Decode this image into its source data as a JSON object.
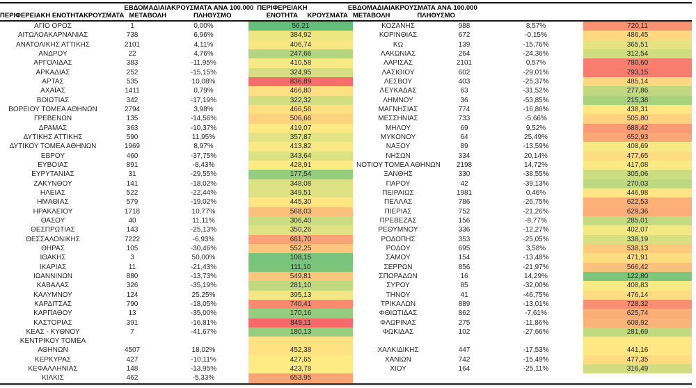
{
  "color_scale": {
    "min": 56.21,
    "mid": 427.65,
    "max": 849.11,
    "min_color": "#63BE7B",
    "mid_color": "#FFEB84",
    "max_color": "#F8696B"
  },
  "border_colors": {
    "heavy": "#141414",
    "bottom": "#4a4a4a"
  },
  "tables": [
    {
      "headers": {
        "region": "ΠΕΡΙΦΕΡΕΙΑΚΗ ΕΝΟΤΗΤΑ",
        "cases": "ΚΡΟΥΣΜΑΤΑ",
        "change": "ΕΒΔΟΜΑΔΙΑΙΑ\nΜΕΤΑΒΟΛΗ",
        "per100k": "ΚΡΟΥΣΜΑΤΑ ΑΝΑ 100.000\nΠΛΗΘΥΣΜΟ"
      },
      "rows": [
        {
          "n": "ΑΓΙΟ ΟΡΟΣ",
          "c": "1",
          "w": "0,00%",
          "p": "56,21"
        },
        {
          "n": "ΑΙΤΩΛΟΑΚΑΡΝΑΝΙΑΣ",
          "c": "738",
          "w": "6,96%",
          "p": "384,92"
        },
        {
          "n": "ΑΝΑΤΟΛΙΚΗΣ ΑΤΤΙΚΗΣ",
          "c": "2101",
          "w": "4,11%",
          "p": "406,74"
        },
        {
          "n": "ΑΝΔΡΟΥ",
          "c": "22",
          "w": "4,76%",
          "p": "247,66"
        },
        {
          "n": "ΑΡΓΟΛΙΔΑΣ",
          "c": "383",
          "w": "-11,95%",
          "p": "410,58"
        },
        {
          "n": "ΑΡΚΑΔΙΑΣ",
          "c": "252",
          "w": "-15,15%",
          "p": "324,95"
        },
        {
          "n": "ΑΡΤΑΣ",
          "c": "535",
          "w": "10,08%",
          "p": "836,89"
        },
        {
          "n": "ΑΧΑΪΑΣ",
          "c": "1411",
          "w": "0,79%",
          "p": "466,80"
        },
        {
          "n": "ΒΟΙΩΤΙΑΣ",
          "c": "342",
          "w": "-17,19%",
          "p": "322,32"
        },
        {
          "n": "ΒΟΡΕΙΟΥ ΤΟΜΕΑ ΑΘΗΝΩΝ",
          "c": "2794",
          "w": "3,98%",
          "p": "466,56"
        },
        {
          "n": "ΓΡΕΒΕΝΩΝ",
          "c": "135",
          "w": "-14,56%",
          "p": "506,66"
        },
        {
          "n": "ΔΡΑΜΑΣ",
          "c": "363",
          "w": "-10,37%",
          "p": "419,07"
        },
        {
          "n": "ΔΥΤΙΚΗΣ ΑΤΤΙΚΗΣ",
          "c": "590",
          "w": "11,95%",
          "p": "357,87"
        },
        {
          "n": "ΔΥΤΙΚΟΥ ΤΟΜΕΑ ΑΘΗΝΩΝ",
          "c": "1969",
          "w": "8,97%",
          "p": "413,82"
        },
        {
          "n": "ΕΒΡΟΥ",
          "c": "460",
          "w": "-37,75%",
          "p": "343,64"
        },
        {
          "n": "ΕΥΒΟΙΑΣ",
          "c": "891",
          "w": "-8,43%",
          "p": "428,91"
        },
        {
          "n": "ΕΥΡΥΤΑΝΙΑΣ",
          "c": "31",
          "w": "-29,55%",
          "p": "177,54"
        },
        {
          "n": "ΖΑΚΥΝΘΟΥ",
          "c": "141",
          "w": "-18,02%",
          "p": "348,08"
        },
        {
          "n": "ΗΛΕΙΑΣ",
          "c": "522",
          "w": "-22,44%",
          "p": "349,51"
        },
        {
          "n": "ΗΜΑΘΙΑΣ",
          "c": "579",
          "w": "-19,02%",
          "p": "445,30"
        },
        {
          "n": "ΗΡΑΚΛΕΙΟΥ",
          "c": "1718",
          "w": "10,77%",
          "p": "568,03"
        },
        {
          "n": "ΘΑΣΟΥ",
          "c": "40",
          "w": "11,11%",
          "p": "306,40"
        },
        {
          "n": "ΘΕΣΠΡΩΤΙΑΣ",
          "c": "143",
          "w": "-25,13%",
          "p": "350,26"
        },
        {
          "n": "ΘΕΣΣΑΛΟΝΙΚΗΣ",
          "c": "7222",
          "w": "-6,93%",
          "p": "661,70"
        },
        {
          "n": "ΘΗΡΑΣ",
          "c": "105",
          "w": "-30,46%",
          "p": "552,25"
        },
        {
          "n": "ΙΘΑΚΗΣ",
          "c": "3",
          "w": "50,00%",
          "p": "108,15"
        },
        {
          "n": "ΙΚΑΡΙΑΣ",
          "c": "11",
          "w": "-21,43%",
          "p": "111,10"
        },
        {
          "n": "ΙΩΑΝΝΙΝΩΝ",
          "c": "880",
          "w": "-13,73%",
          "p": "549,81"
        },
        {
          "n": "ΚΑΒΑΛΑΣ",
          "c": "326",
          "w": "-35,19%",
          "p": "281,10"
        },
        {
          "n": "ΚΑΛΥΜΝΟΥ",
          "c": "124",
          "w": "25,25%",
          "p": "395,13"
        },
        {
          "n": "ΚΑΡΔΙΤΣΑΣ",
          "c": "790",
          "w": "-18,05%",
          "p": "740,41"
        },
        {
          "n": "ΚΑΡΠΑΘΟΥ",
          "c": "13",
          "w": "-35,00%",
          "p": "170,16"
        },
        {
          "n": "ΚΑΣΤΟΡΙΑΣ",
          "c": "391",
          "w": "-16,81%",
          "p": "849,11"
        },
        {
          "n": "ΚΕΑΣ - ΚΥΘΝΟΥ",
          "c": "7",
          "w": "-41,67%",
          "p": "180,13"
        },
        {
          "n1": "ΚΕΝΤΡΙΚΟΥ ΤΟΜΕΑ",
          "n2": "ΑΘΗΝΩΝ",
          "c": "4507",
          "w": "18,02%",
          "p": "452,38"
        },
        {
          "n": "ΚΕΡΚΥΡΑΣ",
          "c": "427",
          "w": "-10,11%",
          "p": "427,65"
        },
        {
          "n": "ΚΕΦΑΛΛΗΝΙΑΣ",
          "c": "148",
          "w": "-13,95%",
          "p": "423,78"
        },
        {
          "n": "ΚΙΛΚΙΣ",
          "c": "462",
          "w": "-5,33%",
          "p": "653,95"
        }
      ]
    },
    {
      "headers": {
        "region": "ΠΕΡΙΦΕΡΕΙΑΚΗ\nΕΝΟΤΗΤΑ",
        "cases": "ΚΡΟΥΣΜΑΤΑ",
        "change": "ΕΒΔΟΜΑΔΙΑΙΑ\nΜΕΤΑΒΟΛΗ",
        "per100k": "ΚΡΟΥΣΜΑΤΑ ΑΝΑ 100.000\nΠΛΗΘΥΣΜΟ"
      },
      "rows": [
        {
          "n": "ΚΟΖΑΝΗΣ",
          "c": "988",
          "w": "8,57%",
          "p": "720,11"
        },
        {
          "n": "ΚΟΡΙΝΘΙΑΣ",
          "c": "672",
          "w": "-0,15%",
          "p": "486,45"
        },
        {
          "n": "ΚΩ",
          "c": "139",
          "w": "-15,76%",
          "p": "365,51"
        },
        {
          "n": "ΛΑΚΩΝΙΑΣ",
          "c": "264",
          "w": "-24,36%",
          "p": "312,54"
        },
        {
          "n": "ΛΑΡΙΣΑΣ",
          "c": "2101",
          "w": "0,57%",
          "p": "780,60"
        },
        {
          "n": "ΛΑΣΙΘΙΟΥ",
          "c": "602",
          "w": "-29,01%",
          "p": "793,15"
        },
        {
          "n": "ΛΕΣΒΟΥ",
          "c": "403",
          "w": "-25,37%",
          "p": "485,14"
        },
        {
          "n": "ΛΕΥΚΑΔΑΣ",
          "c": "63",
          "w": "-31,52%",
          "p": "277,86"
        },
        {
          "n": "ΛΗΜΝΟΥ",
          "c": "36",
          "w": "-53,85%",
          "p": "215,38"
        },
        {
          "n": "ΜΑΓΝΗΣΙΑΣ",
          "c": "774",
          "w": "-16,86%",
          "p": "438,31"
        },
        {
          "n": "ΜΕΣΣΗΝΙΑΣ",
          "c": "733",
          "w": "-5,66%",
          "p": "505,80"
        },
        {
          "n": "ΜΗΛΟΥ",
          "c": "69",
          "w": "9,52%",
          "p": "688,42"
        },
        {
          "n": "ΜΥΚΟΝΟΥ",
          "c": "64",
          "w": "25,49%",
          "p": "652,93"
        },
        {
          "n": "ΝΑΞΟΥ",
          "c": "89",
          "w": "-13,59%",
          "p": "408,69"
        },
        {
          "n": "ΝΗΣΩΝ",
          "c": "334",
          "w": "20,14%",
          "p": "477,65"
        },
        {
          "n": "ΝΟΤΙΟΥ ΤΟΜΕΑ ΑΘΗΝΩΝ",
          "c": "2198",
          "w": "14,72%",
          "p": "417,08"
        },
        {
          "n": "ΞΑΝΘΗΣ",
          "c": "330",
          "w": "-38,55%",
          "p": "305,06"
        },
        {
          "n": "ΠΑΡΟΥ",
          "c": "42",
          "w": "-39,13%",
          "p": "270,03"
        },
        {
          "n": "ΠΕΙΡΑΙΩΣ",
          "c": "1981",
          "w": "0,46%",
          "p": "446,98"
        },
        {
          "n": "ΠΕΛΛΑΣ",
          "c": "786",
          "w": "-26,75%",
          "p": "622,53"
        },
        {
          "n": "ΠΙΕΡΙΑΣ",
          "c": "752",
          "w": "-21,26%",
          "p": "629,36"
        },
        {
          "n": "ΠΡΕΒΕΖΑΣ",
          "c": "156",
          "w": "-8,77%",
          "p": "285,01"
        },
        {
          "n": "ΡΕΘΥΜΝΟΥ",
          "c": "336",
          "w": "-12,27%",
          "p": "402,07"
        },
        {
          "n": "ΡΟΔΟΠΗΣ",
          "c": "353",
          "w": "-25,05%",
          "p": "338,19"
        },
        {
          "n": "ΡΟΔΟΥ",
          "c": "695",
          "w": "3,58%",
          "p": "538,13"
        },
        {
          "n": "ΣΑΜΟΥ",
          "c": "154",
          "w": "-13,48%",
          "p": "471,91"
        },
        {
          "n": "ΣΕΡΡΩΝ",
          "c": "856",
          "w": "-21,97%",
          "p": "566,42"
        },
        {
          "n": "ΣΠΟΡΑΔΩΝ",
          "c": "16",
          "w": "14,29%",
          "p": "122,80"
        },
        {
          "n": "ΣΥΡΟΥ",
          "c": "85",
          "w": "-32,00%",
          "p": "408,83"
        },
        {
          "n": "ΤΗΝΟΥ",
          "c": "41",
          "w": "-46,75%",
          "p": "476,14"
        },
        {
          "n": "ΤΡΙΚΑΛΩΝ",
          "c": "889",
          "w": "-13,01%",
          "p": "728,32"
        },
        {
          "n": "ΦΘΙΩΤΙΔΑΣ",
          "c": "862",
          "w": "-7,61%",
          "p": "625,74"
        },
        {
          "n": "ΦΛΩΡΙΝΑΣ",
          "c": "275",
          "w": "-11,86%",
          "p": "608,92"
        },
        {
          "n": "ΦΩΚΙΔΑΣ",
          "c": "102",
          "w": "-27,66%",
          "p": "281,69"
        },
        {
          "n1": "",
          "n2": "ΧΑΛΚΙΔΙΚΗΣ",
          "c": "447",
          "w": "-17,53%",
          "p": "441,16"
        },
        {
          "n": "ΧΑΝΙΩΝ",
          "c": "742",
          "w": "-15,49%",
          "p": "477,35"
        },
        {
          "n": "ΧΙΟΥ",
          "c": "164",
          "w": "-25,11%",
          "p": "316,49"
        }
      ]
    }
  ]
}
